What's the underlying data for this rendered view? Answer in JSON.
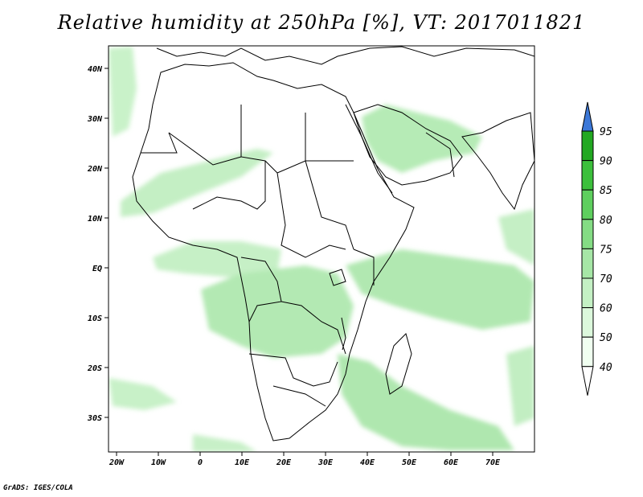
{
  "title": "Relative humidity at 250hPa [%], VT: 2017011821",
  "footer": "GrADS: IGES/COLA",
  "lon_ticks": [
    "20W",
    "10W",
    "0",
    "10E",
    "20E",
    "30E",
    "40E",
    "50E",
    "60E",
    "70E"
  ],
  "lat_ticks": [
    "40N",
    "30N",
    "20N",
    "10N",
    "EQ",
    "10S",
    "20S",
    "30S"
  ],
  "map": {
    "lon_range": [
      -22,
      80
    ],
    "lat_range": [
      -37,
      45
    ],
    "land_fill": "#ffffff",
    "coast_color": "#000000"
  },
  "colorbar": {
    "levels": [
      "40",
      "50",
      "60",
      "70",
      "75",
      "80",
      "85",
      "90",
      "95"
    ],
    "colors": [
      "#f0fff0",
      "#dcf8dc",
      "#c4f0c4",
      "#a6e6a6",
      "#84dc84",
      "#5ecf5e",
      "#3cc03c",
      "#22a822"
    ],
    "top_arrow_color": "#3c78d8",
    "bottom_arrow_color": "#ffffff"
  },
  "humidity_color": "#b8ecb8"
}
